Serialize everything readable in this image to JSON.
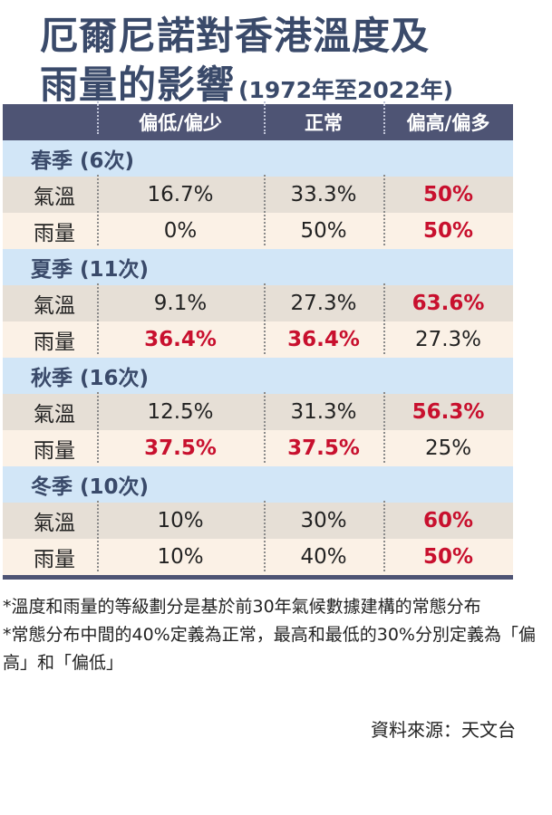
{
  "title": {
    "line1": "厄爾尼諾對香港溫度及",
    "line2": "雨量的影響",
    "years": "(1972年至2022年)"
  },
  "table": {
    "headers": [
      "",
      "偏低/偏少",
      "正常",
      "偏高/偏多"
    ],
    "seasons": [
      {
        "label": "春季 (6次)",
        "rows": [
          {
            "label": "氣溫",
            "values": [
              "16.7%",
              "33.3%",
              "50%"
            ],
            "highlight": [
              false,
              false,
              true
            ]
          },
          {
            "label": "雨量",
            "values": [
              "0%",
              "50%",
              "50%"
            ],
            "highlight": [
              false,
              false,
              true
            ]
          }
        ]
      },
      {
        "label": "夏季 (11次)",
        "rows": [
          {
            "label": "氣溫",
            "values": [
              "9.1%",
              "27.3%",
              "63.6%"
            ],
            "highlight": [
              false,
              false,
              true
            ]
          },
          {
            "label": "雨量",
            "values": [
              "36.4%",
              "36.4%",
              "27.3%"
            ],
            "highlight": [
              true,
              true,
              false
            ]
          }
        ]
      },
      {
        "label": "秋季 (16次)",
        "rows": [
          {
            "label": "氣溫",
            "values": [
              "12.5%",
              "31.3%",
              "56.3%"
            ],
            "highlight": [
              false,
              false,
              true
            ]
          },
          {
            "label": "雨量",
            "values": [
              "37.5%",
              "37.5%",
              "25%"
            ],
            "highlight": [
              true,
              true,
              false
            ]
          }
        ]
      },
      {
        "label": "冬季 (10次)",
        "rows": [
          {
            "label": "氣溫",
            "values": [
              "10%",
              "30%",
              "60%"
            ],
            "highlight": [
              false,
              false,
              true
            ]
          },
          {
            "label": "雨量",
            "values": [
              "10%",
              "40%",
              "50%"
            ],
            "highlight": [
              false,
              false,
              true
            ]
          }
        ]
      }
    ]
  },
  "notes": [
    "*溫度和雨量的等級劃分是基於前30年氣候數據建構的常態分布",
    "*常態分布中間的40%定義為正常，最高和最低的30%分別定義為「偏高」和「偏低」"
  ],
  "source": "資料來源：天文台",
  "colors": {
    "header_bg": "#4e5474",
    "season_bg": "#d2e6f7",
    "row_odd": "#e6dfd6",
    "row_even": "#fbf1e6",
    "highlight": "#c8102e",
    "title": "#3a4a6a"
  }
}
